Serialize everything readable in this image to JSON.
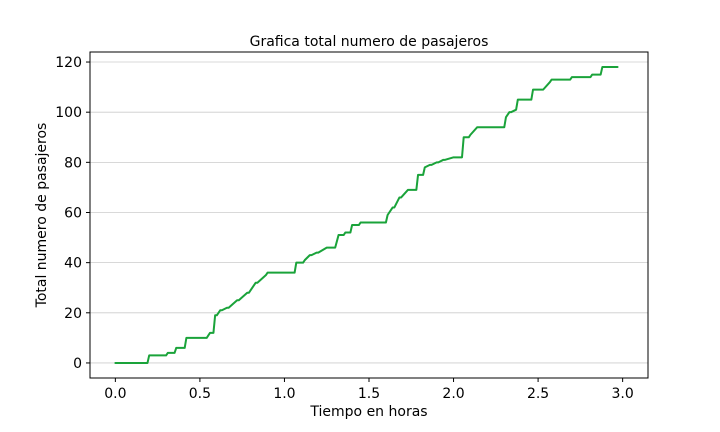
{
  "chart_data": {
    "type": "line",
    "title": "Grafica total numero de pasajeros",
    "xlabel": "Tiempo en horas",
    "ylabel": "Total numero de pasajeros",
    "xlim": [
      -0.15,
      3.15
    ],
    "ylim": [
      -6,
      124
    ],
    "xticks": [
      0.0,
      0.5,
      1.0,
      1.5,
      2.0,
      2.5,
      3.0
    ],
    "xtick_labels": [
      "0.0",
      "0.5",
      "1.0",
      "1.5",
      "2.0",
      "2.5",
      "3.0"
    ],
    "yticks": [
      0,
      20,
      40,
      60,
      80,
      100,
      120
    ],
    "ytick_labels": [
      "0",
      "20",
      "40",
      "60",
      "80",
      "100",
      "120"
    ],
    "grid": "horizontal",
    "legend": "none",
    "colors": {
      "line": "#1aa33a",
      "grid": "#cccccc",
      "axes": "#000000"
    },
    "series": [
      {
        "x": [
          0.0,
          0.19,
          0.2,
          0.3,
          0.31,
          0.35,
          0.36,
          0.41,
          0.42,
          0.54,
          0.56,
          0.58,
          0.59,
          0.6,
          0.62,
          0.63,
          0.66,
          0.67,
          0.72,
          0.73,
          0.78,
          0.79,
          0.83,
          0.84,
          0.89,
          0.9,
          0.93,
          0.95,
          1.06,
          1.07,
          1.11,
          1.12,
          1.15,
          1.16,
          1.19,
          1.2,
          1.25,
          1.26,
          1.3,
          1.32,
          1.35,
          1.36,
          1.39,
          1.4,
          1.44,
          1.45,
          1.48,
          1.49,
          1.6,
          1.61,
          1.64,
          1.65,
          1.68,
          1.69,
          1.73,
          1.74,
          1.78,
          1.79,
          1.82,
          1.83,
          1.86,
          1.87,
          1.9,
          1.91,
          1.94,
          1.95,
          2.0,
          2.01,
          2.05,
          2.06,
          2.09,
          2.1,
          2.14,
          2.15,
          2.3,
          2.31,
          2.33,
          2.34,
          2.37,
          2.38,
          2.46,
          2.47,
          2.52,
          2.53,
          2.57,
          2.58,
          2.69,
          2.7,
          2.81,
          2.82,
          2.87,
          2.88,
          2.97
        ],
        "y": [
          0,
          0,
          3,
          3,
          4,
          4,
          6,
          6,
          10,
          10,
          12,
          12,
          19,
          19,
          21,
          21,
          22,
          22,
          25,
          25,
          28,
          28,
          32,
          32,
          35,
          36,
          36,
          36,
          36,
          40,
          40,
          41,
          43,
          43,
          44,
          44,
          46,
          46,
          46,
          51,
          51,
          52,
          52,
          55,
          55,
          56,
          56,
          56,
          56,
          59,
          62,
          62,
          66,
          66,
          69,
          69,
          69,
          75,
          75,
          78,
          79,
          79,
          80,
          80,
          81,
          81,
          82,
          82,
          82,
          90,
          90,
          91,
          94,
          94,
          94,
          98,
          100,
          100,
          101,
          105,
          105,
          109,
          109,
          109,
          112,
          113,
          113,
          114,
          114,
          115,
          115,
          118,
          118
        ]
      }
    ]
  }
}
